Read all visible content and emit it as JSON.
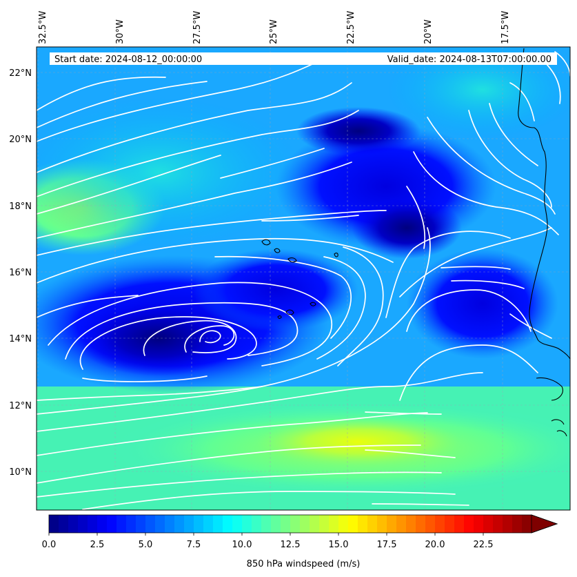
{
  "map": {
    "start_date": "Start date: 2024-08-12_00:00:00",
    "valid_date": "Valid_date: 2024-08-13T07:00:00.00",
    "lon_labels": [
      "32.5°W",
      "30°W",
      "27.5°W",
      "25°W",
      "22.5°W",
      "20°W",
      "17.5°W"
    ],
    "lat_labels": [
      "22°N",
      "20°N",
      "18°N",
      "16°N",
      "14°N",
      "12°N",
      "10°N"
    ],
    "field": "850 hPa windspeed",
    "extent": {
      "lon_min": -33.0,
      "lon_max": -15.5,
      "lat_min": 8.9,
      "lat_max": 22.8
    },
    "colors": {
      "stream": "#ffffff",
      "coast": "#000000"
    }
  },
  "colorbar": {
    "label": "850 hPa windspeed (m/s)",
    "ticks": [
      "0.0",
      "2.5",
      "5.0",
      "7.5",
      "10.0",
      "12.5",
      "15.0",
      "17.5",
      "20.0",
      "22.5"
    ],
    "min": 0,
    "max": 25,
    "levels": 50,
    "extend": "max",
    "colormap": "jet"
  }
}
